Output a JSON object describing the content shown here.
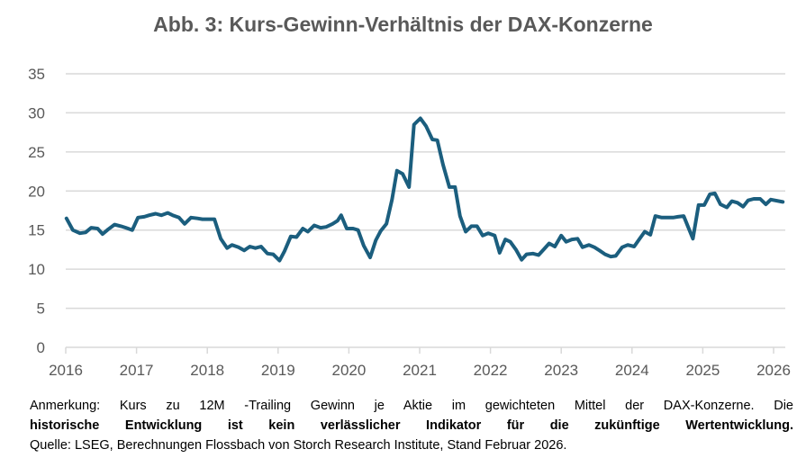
{
  "chart_data": {
    "type": "line",
    "title": "Abb. 3: Kurs-Gewinn-Verhältnis der DAX-Konzerne",
    "xlabel": "",
    "ylabel": "",
    "xlim": [
      2016,
      2026.15
    ],
    "ylim": [
      0,
      35
    ],
    "x_ticks": [
      "2016",
      "2017",
      "2018",
      "2019",
      "2020",
      "2021",
      "2022",
      "2023",
      "2024",
      "2025",
      "2026"
    ],
    "y_ticks": [
      "0",
      "5",
      "10",
      "15",
      "20",
      "25",
      "30",
      "35"
    ],
    "grid": "horizontal",
    "line_color": "#1b5e7e",
    "series": [
      {
        "x": [
          2016.01,
          2016.1,
          2016.2,
          2016.28,
          2016.36,
          2016.45,
          2016.52,
          2016.6,
          2016.69,
          2016.78,
          2016.85,
          2016.94,
          2017.02,
          2017.11,
          2017.18,
          2017.27,
          2017.35,
          2017.44,
          2017.51,
          2017.6,
          2017.68,
          2017.77,
          2017.86,
          2017.93,
          2018.02,
          2018.1,
          2018.19,
          2018.28,
          2018.35,
          2018.44,
          2018.52,
          2018.6,
          2018.68,
          2018.76,
          2018.85,
          2018.93,
          2019.02,
          2019.09,
          2019.18,
          2019.26,
          2019.35,
          2019.42,
          2019.51,
          2019.6,
          2019.68,
          2019.77,
          2019.84,
          2019.89,
          2019.97,
          2020.06,
          2020.13,
          2020.21,
          2020.3,
          2020.38,
          2020.45,
          2020.53,
          2020.61,
          2020.68,
          2020.76,
          2020.85,
          2020.92,
          2021.01,
          2021.09,
          2021.18,
          2021.25,
          2021.33,
          2021.42,
          2021.5,
          2021.57,
          2021.65,
          2021.73,
          2021.81,
          2021.89,
          2021.97,
          2022.06,
          2022.13,
          2022.21,
          2022.28,
          2022.36,
          2022.44,
          2022.51,
          2022.6,
          2022.68,
          2022.76,
          2022.83,
          2022.91,
          2023.0,
          2023.07,
          2023.15,
          2023.23,
          2023.3,
          2023.39,
          2023.47,
          2023.54,
          2023.62,
          2023.7,
          2023.77,
          2023.86,
          2023.94,
          2024.03,
          2024.1,
          2024.18,
          2024.26,
          2024.33,
          2024.42,
          2024.5,
          2024.58,
          2024.65,
          2024.73,
          2024.86,
          2024.94,
          2025.02,
          2025.1,
          2025.17,
          2025.25,
          2025.34,
          2025.41,
          2025.49,
          2025.57,
          2025.64,
          2025.72,
          2025.81,
          2025.89,
          2025.96,
          2026.13
        ],
        "y": [
          16.5,
          15.0,
          14.6,
          14.7,
          15.3,
          15.2,
          14.5,
          15.1,
          15.7,
          15.5,
          15.3,
          15.0,
          16.6,
          16.7,
          16.9,
          17.1,
          16.9,
          17.2,
          16.9,
          16.6,
          15.8,
          16.6,
          16.5,
          16.4,
          16.4,
          16.4,
          13.9,
          12.7,
          13.1,
          12.8,
          12.4,
          12.9,
          12.7,
          12.9,
          12.0,
          11.9,
          11.1,
          12.3,
          14.2,
          14.1,
          15.2,
          14.8,
          15.6,
          15.3,
          15.4,
          15.8,
          16.2,
          16.9,
          15.2,
          15.2,
          15.0,
          13.0,
          11.5,
          13.7,
          14.9,
          15.8,
          18.9,
          22.6,
          22.2,
          20.5,
          28.5,
          29.3,
          28.3,
          26.6,
          26.5,
          23.4,
          20.5,
          20.5,
          16.8,
          14.8,
          15.5,
          15.5,
          14.3,
          14.6,
          14.3,
          12.1,
          13.8,
          13.5,
          12.5,
          11.2,
          11.9,
          12.0,
          11.8,
          12.6,
          13.3,
          12.9,
          14.3,
          13.5,
          13.8,
          13.9,
          12.8,
          13.1,
          12.8,
          12.4,
          11.9,
          11.6,
          11.7,
          12.8,
          13.1,
          12.9,
          13.8,
          14.8,
          14.4,
          16.8,
          16.6,
          16.6,
          16.6,
          16.7,
          16.8,
          13.9,
          18.2,
          18.2,
          19.6,
          19.7,
          18.3,
          17.9,
          18.7,
          18.5,
          18.0,
          18.8,
          19.0,
          19.0,
          18.3,
          18.9,
          18.6
        ]
      }
    ]
  },
  "notes": {
    "line1": "Anmerkung: Kurs zu 12M -Trailing Gewinn je Aktie im gewichteten Mittel der DAX-Konzerne. Die",
    "line2": "historische Entwicklung ist kein verlässlicher Indikator für die zukünftige Wertentwicklung.",
    "line3": "Quelle: LSEG, Berechnungen Flossbach von Storch Research Institute, Stand Februar 2026."
  }
}
